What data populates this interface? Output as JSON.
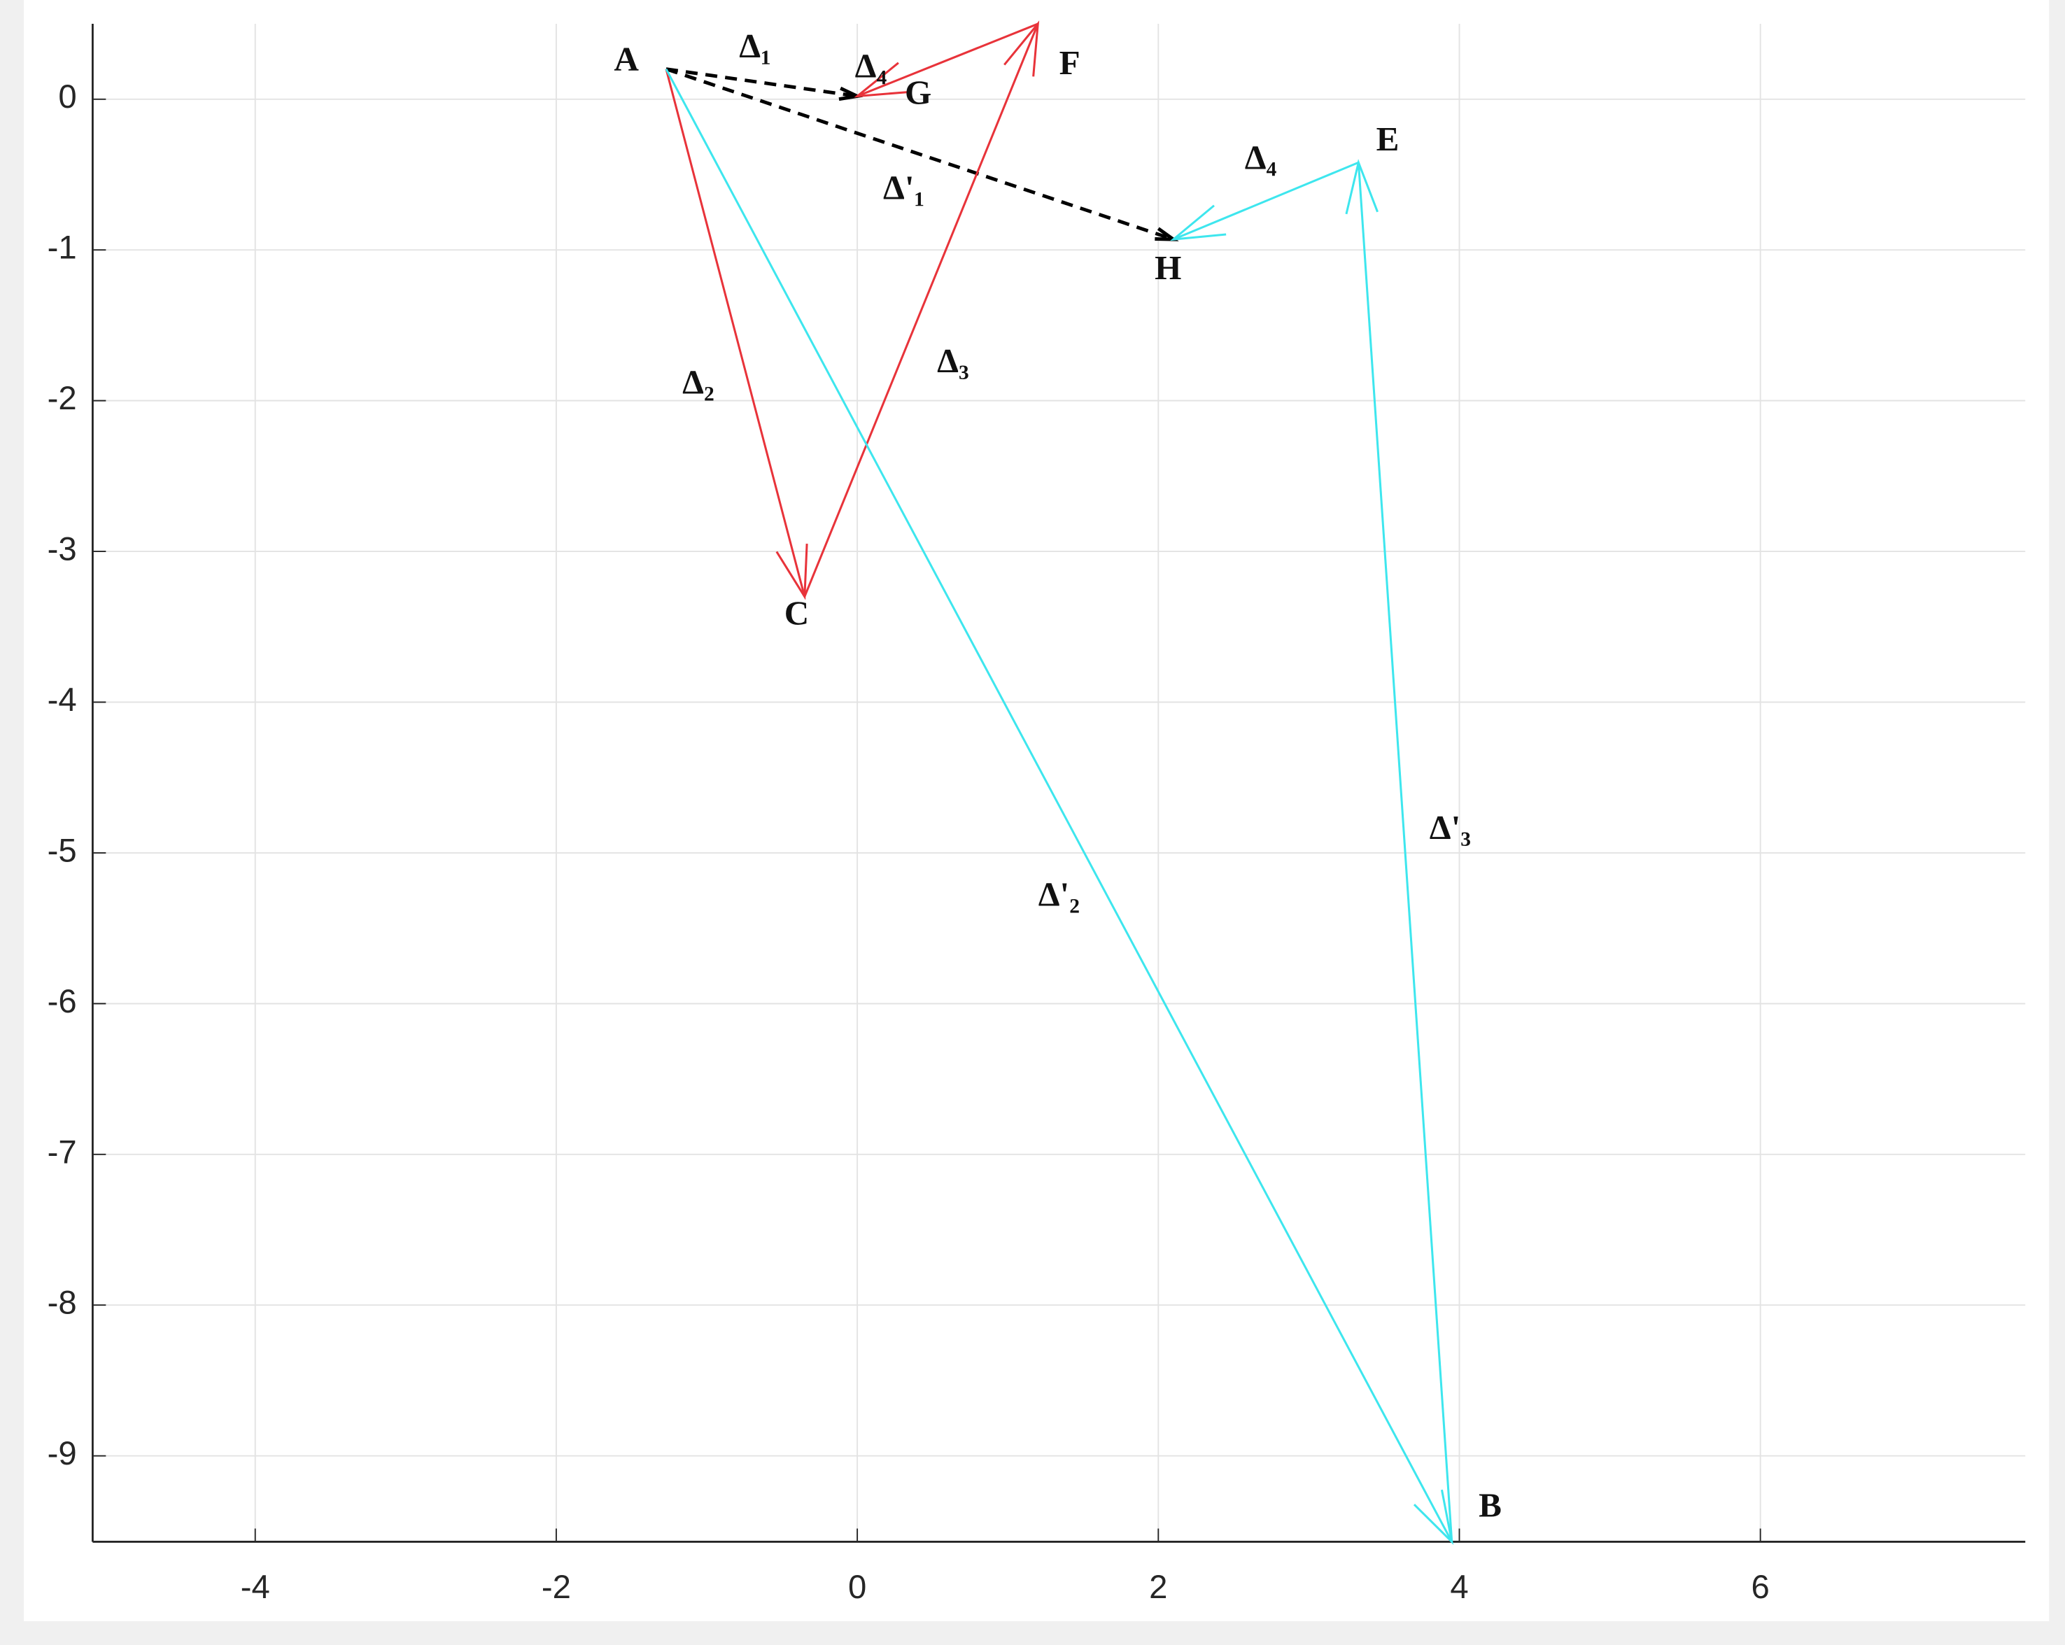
{
  "chart_data": {
    "type": "vector",
    "xlim": [
      -5.08,
      7.76
    ],
    "ylim": [
      -9.57,
      0.5
    ],
    "xticks": [
      -4,
      -2,
      0,
      2,
      4,
      6
    ],
    "yticks": [
      0,
      -1,
      -2,
      -3,
      -4,
      -5,
      -6,
      -7,
      -8,
      -9
    ],
    "grid": true,
    "points": [
      {
        "label": "A",
        "x": -1.27,
        "y": 0.2
      },
      {
        "label": "B",
        "x": 3.95,
        "y": -9.57
      },
      {
        "label": "C",
        "x": -0.35,
        "y": -3.3
      },
      {
        "label": "E",
        "x": 3.33,
        "y": -0.42
      },
      {
        "label": "F",
        "x": 1.2,
        "y": 0.5
      },
      {
        "label": "G",
        "x": 0,
        "y": 0.02
      },
      {
        "label": "H",
        "x": 2.1,
        "y": -0.93
      }
    ],
    "vectors": [
      {
        "label": "Δ₁",
        "color": "#000000",
        "dashed": true,
        "x": [
          -1.27,
          0
        ],
        "y": [
          0.2,
          0.02
        ]
      },
      {
        "label": "Δ'₁",
        "color": "#000000",
        "dashed": true,
        "x": [
          -1.27,
          2.1
        ],
        "y": [
          0.2,
          -0.93
        ]
      },
      {
        "label": "Δ₂",
        "color": "#e8333a",
        "dashed": false,
        "x": [
          -1.27,
          -0.35
        ],
        "y": [
          0.2,
          -3.3
        ]
      },
      {
        "label": "Δ₃",
        "color": "#e8333a",
        "dashed": false,
        "x": [
          -0.35,
          1.2
        ],
        "y": [
          -3.3,
          0.5
        ]
      },
      {
        "label": "Δ₄",
        "color": "#e8333a",
        "dashed": false,
        "x": [
          1.2,
          0
        ],
        "y": [
          0.5,
          0.02
        ]
      },
      {
        "label": "Δ'₂",
        "color": "#3ee6ee",
        "dashed": false,
        "x": [
          -1.27,
          3.95
        ],
        "y": [
          0.2,
          -9.57
        ]
      },
      {
        "label": "Δ'₃",
        "color": "#3ee6ee",
        "dashed": false,
        "x": [
          3.95,
          3.33
        ],
        "y": [
          -9.57,
          -0.42
        ]
      },
      {
        "label": "Δ₄",
        "color": "#3ee6ee",
        "dashed": false,
        "x": [
          3.33,
          2.1
        ],
        "y": [
          -0.42,
          -0.93
        ]
      }
    ]
  }
}
